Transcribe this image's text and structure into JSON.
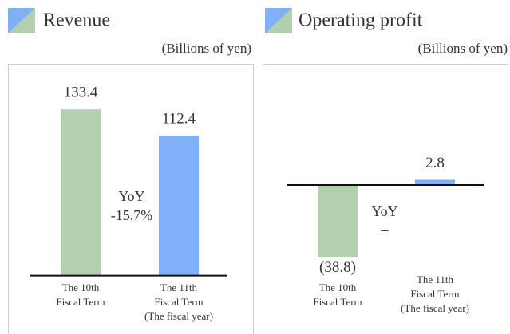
{
  "chart_data": [
    {
      "type": "bar",
      "title": "Revenue",
      "unit": "(Billions of yen)",
      "categories": [
        "The 10th\nFiscal Term",
        "The 11th\nFiscal Term\n(The fiscal year)"
      ],
      "values": [
        133.4,
        112.4
      ],
      "colors": [
        "#b3cfb0",
        "#80b0f8"
      ],
      "text_colors": [
        "#333333",
        "#80b0f8"
      ],
      "annotation": [
        "YoY",
        "-15.7%"
      ],
      "ylim": [
        -47,
        170
      ]
    },
    {
      "type": "bar",
      "title": "Operating profit",
      "unit": "(Billions of yen)",
      "categories": [
        "The 10th\nFiscal Term",
        "The 11th\nFiscal Term\n(The fiscal year)"
      ],
      "values": [
        -38.8,
        2.8
      ],
      "value_labels": [
        "(38.8)",
        "2.8"
      ],
      "colors": [
        "#b3cfb0",
        "#80b0f8"
      ],
      "text_colors": [
        "#333333",
        "#80b0f8"
      ],
      "annotation": [
        "YoY",
        "–"
      ],
      "ylim": [
        -80,
        65
      ]
    }
  ]
}
